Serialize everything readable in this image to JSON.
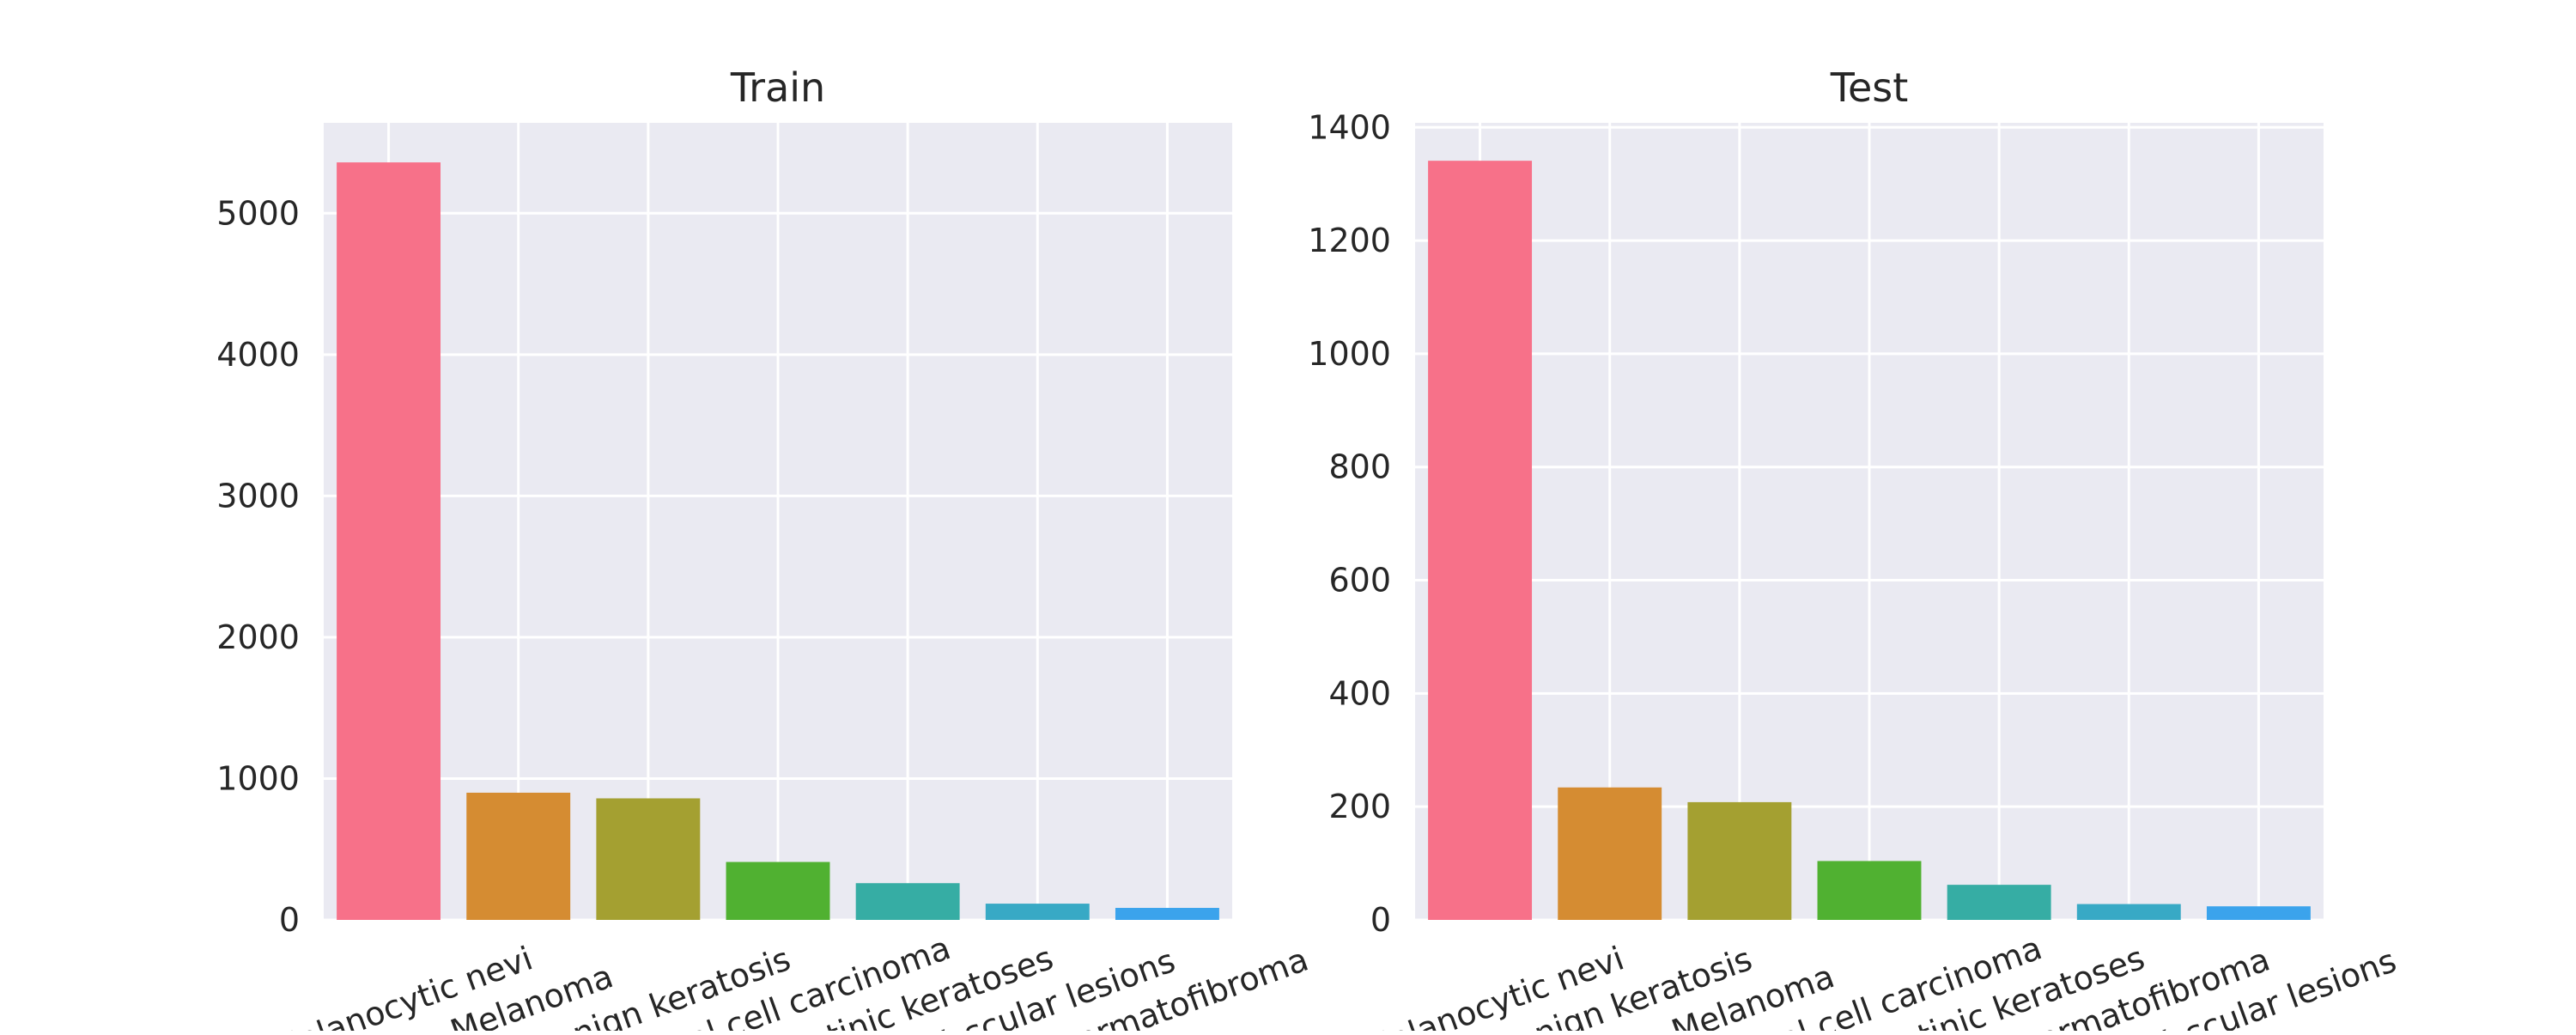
{
  "chart_data": [
    {
      "type": "bar",
      "title": "Train",
      "xlabel": "",
      "ylabel": "",
      "categories": [
        "Melanocytic nevi",
        "Melanoma",
        "Benign keratosis",
        "Basal cell carcinoma",
        "Actinic keratoses",
        "Vascular lesions",
        "Dermatofibroma"
      ],
      "values": [
        5360,
        900,
        860,
        410,
        260,
        115,
        85
      ],
      "colors": [
        "#f77189",
        "#d58c32",
        "#a4a031",
        "#50b131",
        "#36ada4",
        "#38a9c5",
        "#3ba3ec"
      ],
      "ylim": [
        0,
        5640
      ],
      "yticks": [
        0,
        1000,
        2000,
        3000,
        4000,
        5000
      ],
      "grid": true
    },
    {
      "type": "bar",
      "title": "Test",
      "xlabel": "",
      "ylabel": "",
      "categories": [
        "Melanocytic nevi",
        "Benign keratosis",
        "Melanoma",
        "Basal cell carcinoma",
        "Actinic keratoses",
        "Dermatofibroma",
        "Vascular lesions"
      ],
      "values": [
        1341,
        234,
        208,
        104,
        62,
        28,
        24
      ],
      "colors": [
        "#f77189",
        "#d58c32",
        "#a4a031",
        "#50b131",
        "#36ada4",
        "#38a9c5",
        "#3ba3ec"
      ],
      "ylim": [
        0,
        1408
      ],
      "yticks": [
        0,
        200,
        400,
        600,
        800,
        1000,
        1200,
        1400
      ],
      "grid": true
    }
  ]
}
